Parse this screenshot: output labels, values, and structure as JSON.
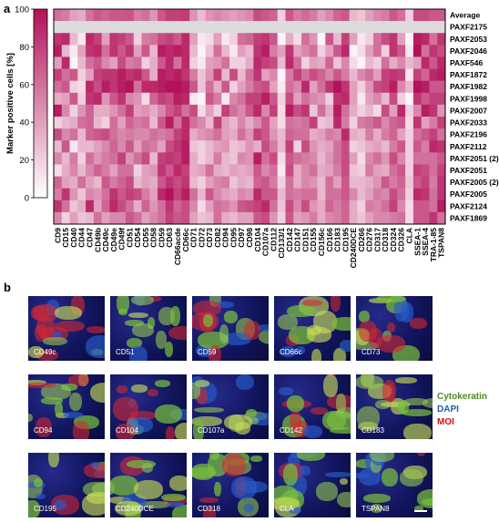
{
  "panel_a": "a",
  "panel_b": "b",
  "colorbar_ticks": [
    "100",
    "80",
    "60",
    "40",
    "20",
    "0"
  ],
  "colors": {
    "high": "#b3115a",
    "low": "#ffffff",
    "average_row": "#dcdcdc"
  },
  "chart_data": {
    "type": "heatmap",
    "ylabel": "Marker positive cells [%]",
    "value_range": [
      0,
      100
    ],
    "columns": [
      "CD9",
      "CD15",
      "CD40",
      "CD44",
      "CD47",
      "CD49b",
      "CD49c",
      "CD49e",
      "CD49f",
      "CD51",
      "CD54",
      "CD55",
      "CD58",
      "CD59",
      "CD63",
      "CD66acde",
      "CD66c",
      "CD71",
      "CD72",
      "CD73",
      "CD82",
      "CD94",
      "CD95",
      "CD97",
      "CD98",
      "CD104",
      "CD107a",
      "CD112",
      "CD133/1",
      "CD142",
      "CD147",
      "CD151",
      "CD155",
      "CD156c",
      "CD166",
      "CD183",
      "CD195",
      "CD240DCE",
      "CD266",
      "CD276",
      "CD317",
      "CD318",
      "CD324",
      "CD326",
      "CLA",
      "SSEA-1",
      "SSEA-4",
      "TRA-1-85",
      "TSPAN8"
    ],
    "rows": [
      "Average",
      "PAXF2175",
      "PAXF2053",
      "PAXF2046",
      "PAXF546",
      "PAXF1872",
      "PAXF1982",
      "PAXF1998",
      "PAXF2007",
      "PAXF2033",
      "PAXF2196",
      "PAXF2112",
      "PAXF2051 (2)",
      "PAXF2051",
      "PAXF2005 (2)",
      "PAXF2005",
      "PAXF2124",
      "PAXF1869"
    ],
    "values": [
      [
        60,
        55,
        40,
        35,
        60,
        70,
        65,
        70,
        70,
        72,
        55,
        60,
        45,
        70,
        80,
        80,
        82,
        45,
        28,
        45,
        50,
        45,
        40,
        45,
        50,
        75,
        70,
        65,
        20,
        70,
        55,
        62,
        55,
        40,
        50,
        65,
        70,
        30,
        25,
        40,
        50,
        55,
        70,
        60,
        20,
        75,
        75,
        70,
        70
      ],
      [
        null,
        null,
        null,
        null,
        null,
        null,
        null,
        null,
        null,
        null,
        null,
        null,
        null,
        null,
        null,
        null,
        null,
        null,
        null,
        null,
        null,
        null,
        null,
        null,
        null,
        null,
        null,
        null,
        null,
        null,
        null,
        null,
        null,
        null,
        null,
        null,
        null,
        null,
        null,
        null,
        null,
        null,
        null,
        null,
        null,
        null,
        null,
        null,
        null
      ],
      [
        85,
        90,
        30,
        10,
        90,
        80,
        40,
        85,
        80,
        70,
        20,
        55,
        60,
        75,
        80,
        70,
        90,
        40,
        10,
        15,
        40,
        10,
        20,
        60,
        65,
        80,
        85,
        70,
        5,
        35,
        15,
        60,
        45,
        5,
        70,
        30,
        80,
        40,
        10,
        20,
        60,
        75,
        85,
        40,
        5,
        95,
        90,
        60,
        85
      ],
      [
        95,
        30,
        10,
        40,
        85,
        90,
        60,
        85,
        70,
        85,
        40,
        70,
        30,
        95,
        90,
        95,
        90,
        30,
        5,
        25,
        60,
        30,
        10,
        40,
        30,
        85,
        95,
        55,
        40,
        85,
        40,
        50,
        60,
        20,
        40,
        70,
        90,
        5,
        15,
        40,
        60,
        20,
        85,
        70,
        10,
        100,
        60,
        85,
        75
      ],
      [
        40,
        90,
        5,
        30,
        60,
        70,
        50,
        40,
        75,
        55,
        60,
        20,
        35,
        70,
        90,
        60,
        90,
        20,
        10,
        40,
        45,
        60,
        20,
        20,
        35,
        90,
        80,
        75,
        30,
        90,
        60,
        20,
        40,
        35,
        65,
        25,
        50,
        15,
        5,
        30,
        20,
        60,
        35,
        50,
        30,
        40,
        90,
        70,
        90
      ],
      [
        80,
        60,
        70,
        20,
        40,
        80,
        85,
        85,
        95,
        85,
        90,
        70,
        35,
        95,
        90,
        95,
        85,
        55,
        25,
        45,
        80,
        30,
        75,
        30,
        60,
        85,
        40,
        50,
        5,
        55,
        80,
        60,
        75,
        65,
        50,
        70,
        55,
        30,
        50,
        60,
        40,
        80,
        85,
        80,
        10,
        80,
        65,
        90,
        95
      ],
      [
        60,
        70,
        20,
        15,
        90,
        75,
        95,
        85,
        95,
        100,
        60,
        90,
        90,
        95,
        100,
        100,
        95,
        70,
        25,
        60,
        35,
        70,
        20,
        40,
        55,
        70,
        75,
        40,
        10,
        60,
        50,
        90,
        40,
        60,
        85,
        100,
        85,
        40,
        20,
        45,
        75,
        80,
        95,
        50,
        30,
        100,
        95,
        70,
        70
      ],
      [
        35,
        40,
        70,
        20,
        85,
        90,
        45,
        70,
        85,
        50,
        45,
        15,
        65,
        80,
        75,
        95,
        90,
        10,
        5,
        70,
        55,
        10,
        50,
        60,
        80,
        80,
        95,
        70,
        20,
        75,
        40,
        60,
        50,
        45,
        20,
        85,
        90,
        40,
        10,
        40,
        50,
        30,
        75,
        20,
        5,
        85,
        70,
        80,
        80
      ],
      [
        95,
        50,
        20,
        45,
        65,
        35,
        35,
        45,
        60,
        80,
        40,
        45,
        35,
        50,
        70,
        80,
        60,
        75,
        15,
        40,
        20,
        80,
        60,
        50,
        70,
        90,
        50,
        80,
        15,
        95,
        75,
        85,
        25,
        60,
        35,
        95,
        60,
        35,
        20,
        30,
        15,
        75,
        40,
        90,
        20,
        50,
        95,
        85,
        45
      ],
      [
        20,
        30,
        35,
        60,
        65,
        30,
        20,
        60,
        40,
        65,
        55,
        60,
        30,
        70,
        95,
        60,
        90,
        60,
        50,
        30,
        80,
        40,
        30,
        50,
        35,
        50,
        70,
        40,
        15,
        60,
        55,
        60,
        80,
        25,
        30,
        90,
        55,
        20,
        55,
        60,
        70,
        50,
        65,
        70,
        15,
        85,
        40,
        55,
        80
      ],
      [
        75,
        50,
        60,
        30,
        65,
        70,
        75,
        60,
        50,
        55,
        50,
        50,
        60,
        55,
        60,
        80,
        90,
        35,
        45,
        50,
        60,
        40,
        35,
        60,
        45,
        80,
        70,
        45,
        30,
        65,
        60,
        60,
        35,
        40,
        55,
        50,
        90,
        35,
        30,
        55,
        35,
        55,
        65,
        40,
        20,
        60,
        70,
        80,
        60
      ],
      [
        30,
        70,
        10,
        30,
        30,
        40,
        50,
        65,
        50,
        70,
        40,
        60,
        55,
        40,
        75,
        85,
        95,
        25,
        20,
        30,
        40,
        45,
        25,
        30,
        45,
        35,
        75,
        55,
        30,
        80,
        20,
        75,
        45,
        35,
        40,
        60,
        75,
        20,
        25,
        35,
        40,
        30,
        55,
        70,
        20,
        70,
        55,
        90,
        85
      ],
      [
        50,
        30,
        55,
        20,
        60,
        45,
        55,
        60,
        80,
        45,
        60,
        75,
        30,
        80,
        85,
        80,
        95,
        35,
        20,
        30,
        55,
        30,
        25,
        50,
        45,
        95,
        60,
        75,
        15,
        70,
        60,
        55,
        50,
        30,
        45,
        60,
        75,
        40,
        15,
        50,
        60,
        45,
        75,
        50,
        20,
        60,
        60,
        60,
        70
      ],
      [
        15,
        35,
        50,
        30,
        50,
        65,
        55,
        40,
        60,
        60,
        20,
        40,
        45,
        85,
        70,
        90,
        80,
        35,
        40,
        60,
        35,
        30,
        40,
        35,
        40,
        70,
        50,
        60,
        10,
        75,
        35,
        50,
        60,
        35,
        40,
        55,
        75,
        25,
        20,
        55,
        40,
        35,
        60,
        70,
        20,
        80,
        75,
        60,
        80
      ],
      [
        65,
        40,
        35,
        60,
        40,
        30,
        70,
        55,
        65,
        75,
        30,
        40,
        35,
        70,
        85,
        75,
        85,
        30,
        20,
        40,
        50,
        55,
        25,
        35,
        30,
        65,
        70,
        55,
        20,
        60,
        35,
        50,
        45,
        30,
        60,
        40,
        70,
        30,
        30,
        35,
        45,
        70,
        55,
        65,
        25,
        70,
        80,
        55,
        85
      ],
      [
        55,
        85,
        45,
        25,
        50,
        45,
        60,
        85,
        70,
        80,
        75,
        55,
        40,
        90,
        100,
        80,
        95,
        60,
        30,
        70,
        50,
        40,
        35,
        50,
        45,
        90,
        70,
        70,
        30,
        60,
        55,
        60,
        60,
        30,
        60,
        60,
        70,
        50,
        30,
        40,
        55,
        50,
        75,
        60,
        20,
        90,
        85,
        60,
        85
      ],
      [
        85,
        60,
        25,
        35,
        90,
        40,
        65,
        90,
        75,
        60,
        35,
        65,
        45,
        60,
        85,
        65,
        75,
        50,
        15,
        40,
        60,
        55,
        45,
        70,
        75,
        80,
        90,
        60,
        25,
        75,
        50,
        75,
        45,
        35,
        65,
        55,
        65,
        35,
        20,
        55,
        50,
        60,
        80,
        50,
        15,
        70,
        70,
        60,
        95
      ],
      [
        50,
        20,
        40,
        25,
        30,
        60,
        40,
        50,
        50,
        70,
        60,
        40,
        50,
        60,
        80,
        70,
        75,
        40,
        25,
        30,
        60,
        35,
        30,
        40,
        40,
        70,
        75,
        45,
        20,
        70,
        40,
        45,
        55,
        35,
        50,
        55,
        65,
        35,
        25,
        40,
        50,
        50,
        55,
        60,
        15,
        70,
        70,
        85,
        60
      ]
    ]
  },
  "micro": {
    "tiles": [
      "CD49c",
      "CD51",
      "CD59",
      "CD66c",
      "CD73",
      "CD94",
      "CD104",
      "CD107a",
      "CD142",
      "CD183",
      "CD195",
      "CD240DCE",
      "CD318",
      "CLA",
      "TSPAN8"
    ],
    "legend": [
      {
        "text": "Cytokeratin",
        "color": "#4a8a2a"
      },
      {
        "text": "DAPI",
        "color": "#1f5fa8"
      },
      {
        "text": "MOI",
        "color": "#cc1111"
      }
    ]
  }
}
